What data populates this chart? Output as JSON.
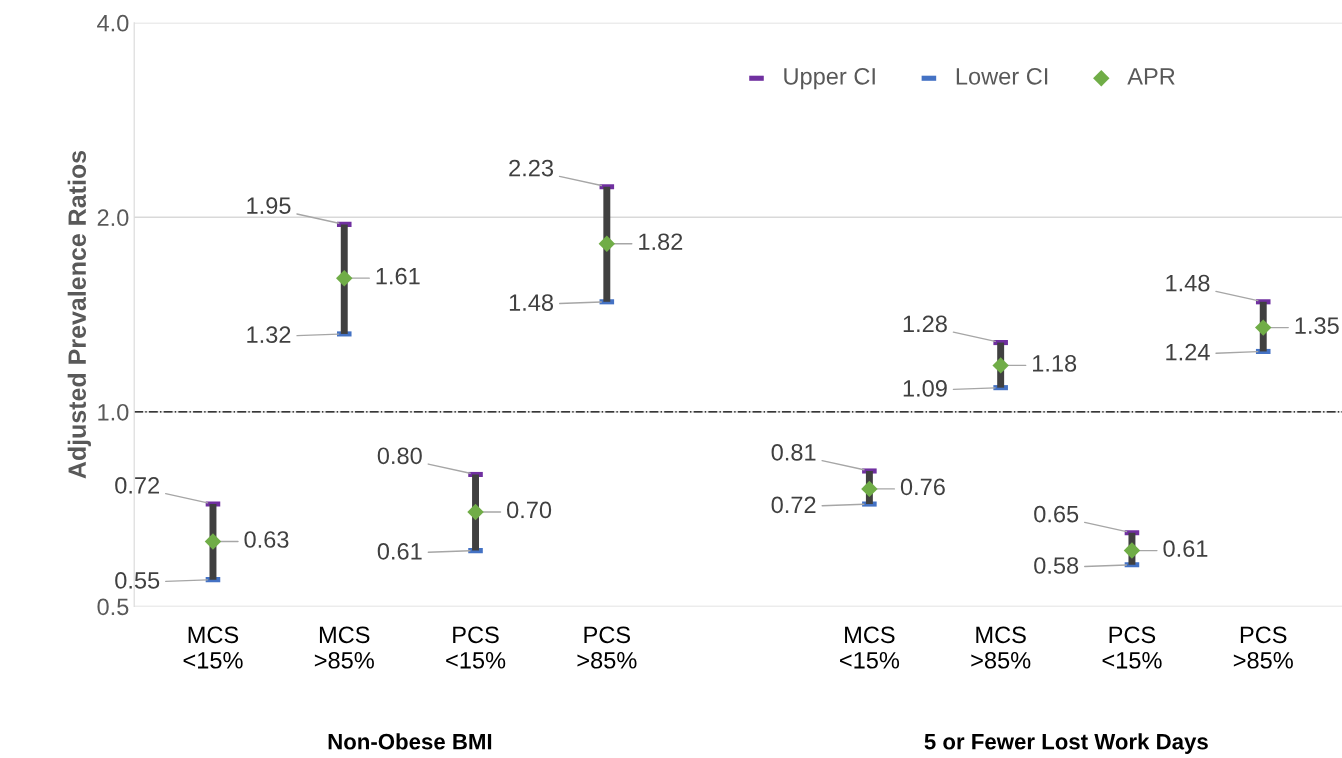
{
  "chart_data": {
    "type": "scatter",
    "ylabel": "Adjusted Prevalence Ratios",
    "log": "y",
    "categories": [
      "MCS\n<15%",
      "MCS\n>85%",
      "PCS\n<15%",
      "PCS\n>85%",
      null,
      "MCS\n<15%",
      "MCS\n>85%",
      "PCS\n<15%",
      "PCS\n>85%"
    ],
    "series": [
      {
        "name": "Upper CI",
        "color": "#7030a0",
        "values": [
          0.72,
          1.95,
          0.8,
          2.23,
          null,
          0.81,
          1.28,
          0.65,
          1.48
        ],
        "value_labels": [
          "0.72",
          "1.95",
          "0.80",
          "2.23",
          null,
          "0.81",
          "1.28",
          "0.65",
          "1.48"
        ]
      },
      {
        "name": "Lower CI",
        "color": "#4472c4",
        "values": [
          0.55,
          1.32,
          0.61,
          1.48,
          null,
          0.72,
          1.09,
          0.58,
          1.24
        ],
        "value_labels": [
          "0.55",
          "1.32",
          "0.61",
          "1.48",
          null,
          "0.72",
          "1.09",
          "0.58",
          "1.24"
        ]
      },
      {
        "name": "APR",
        "color": "#70ad47",
        "marker": "diamond",
        "values": [
          0.63,
          1.61,
          0.7,
          1.82,
          null,
          0.76,
          1.18,
          0.61,
          1.35
        ],
        "value_labels": [
          "0.63",
          "1.61",
          "0.70",
          "1.82",
          null,
          "0.76",
          "1.18",
          "0.61",
          "1.35"
        ]
      }
    ],
    "ylim": [
      0.5,
      4.0
    ],
    "yticks": [
      {
        "value": 0.5,
        "label": "0.5"
      },
      {
        "value": 1,
        "label": "1.0"
      },
      {
        "value": 2,
        "label": "2.0"
      },
      {
        "value": 4,
        "label": "4.0"
      }
    ],
    "grid": "y",
    "legend": "top right",
    "ref_lines": [
      {
        "axis": "y",
        "value": 1,
        "color": "#000000",
        "line_style": "dashdot"
      }
    ],
    "annotations": [
      "Non-Obese BMI",
      "5 or Fewer Lost Work Days"
    ]
  }
}
